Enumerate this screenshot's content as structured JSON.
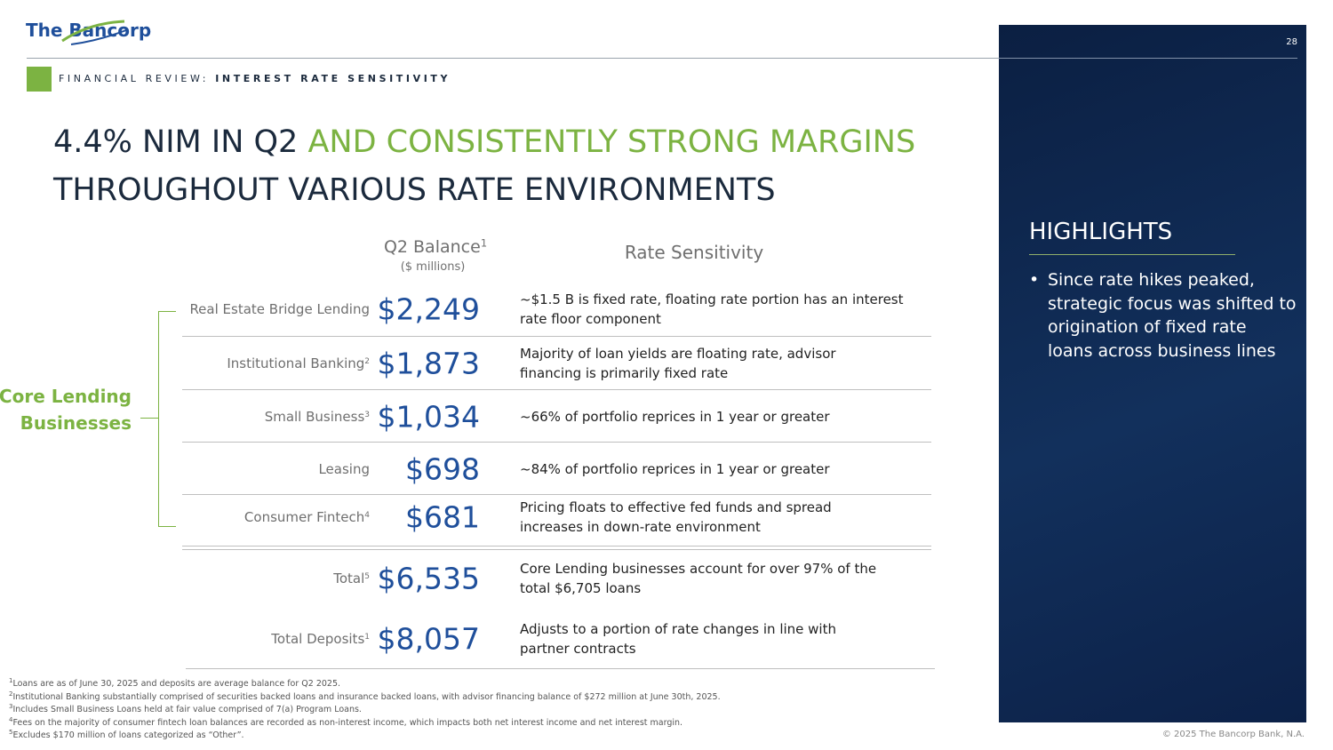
{
  "header": {
    "logo": "The Bancorp",
    "section": "FINANCIAL REVIEW:",
    "subsection": "INTEREST RATE SENSITIVITY",
    "page_number": "28"
  },
  "title": {
    "line1_dark": "4.4% NIM IN Q2",
    "line1_green": "AND CONSISTENTLY STRONG MARGINS",
    "line2": "THROUGHOUT VARIOUS RATE ENVIRONMENTS"
  },
  "table": {
    "balance_header": "Q2 Balance",
    "balance_header_note": "1",
    "balance_unit": "($ millions)",
    "sensitivity_header": "Rate Sensitivity",
    "group_label": [
      "Core Lending",
      "Businesses"
    ],
    "rows": [
      {
        "label": "Real Estate Bridge Lending",
        "note": "",
        "value": "$2,249",
        "text": [
          "~$1.5 B is fixed rate, floating rate portion has an interest",
          "rate floor component"
        ]
      },
      {
        "label": "Institutional Banking",
        "note": "2",
        "value": "$1,873",
        "text": [
          "Majority of loan yields are floating rate, advisor",
          "financing is primarily fixed rate"
        ]
      },
      {
        "label": "Small Business",
        "note": "3",
        "value": "$1,034",
        "text": [
          "~66% of portfolio reprices in 1 year or greater"
        ]
      },
      {
        "label": "Leasing",
        "note": "",
        "value": "$698",
        "text": [
          "~84% of portfolio reprices in 1 year or greater"
        ]
      },
      {
        "label": "Consumer Fintech",
        "note": "4",
        "value": "$681",
        "text": [
          "Pricing floats to effective fed funds and spread",
          "increases in down-rate environment"
        ]
      },
      {
        "label": "Total",
        "note": "5",
        "value": "$6,535",
        "text": [
          "Core Lending businesses account for over 97% of the",
          "total $6,705 loans"
        ]
      },
      {
        "label": "Total Deposits",
        "note": "1",
        "value": "$8,057",
        "text": [
          "Adjusts to a portion of rate changes in line with",
          "partner contracts"
        ]
      }
    ]
  },
  "highlights": {
    "title": "HIGHLIGHTS",
    "bullet": [
      "Since rate hikes peaked,",
      "strategic focus was shifted to",
      "origination of fixed rate",
      "loans across business lines"
    ]
  },
  "footnotes": [
    {
      "mark": "1",
      "text": "Loans are as of June 30, 2025 and deposits are average balance for Q2 2025."
    },
    {
      "mark": "2",
      "text": "Institutional Banking substantially comprised of securities backed loans and insurance backed loans, with advisor financing balance of $272 million at June 30th, 2025."
    },
    {
      "mark": "3",
      "text": "Includes Small Business Loans held at fair value comprised of 7(a) Program Loans."
    },
    {
      "mark": "4",
      "text": "Fees on the majority of consumer fintech loan balances are recorded as non-interest income, which impacts both net interest income and net interest margin."
    },
    {
      "mark": "5",
      "text": "Excludes $170 million of loans categorized as “Other”."
    }
  ],
  "copyright": "© 2025 The Bancorp Bank, N.A."
}
